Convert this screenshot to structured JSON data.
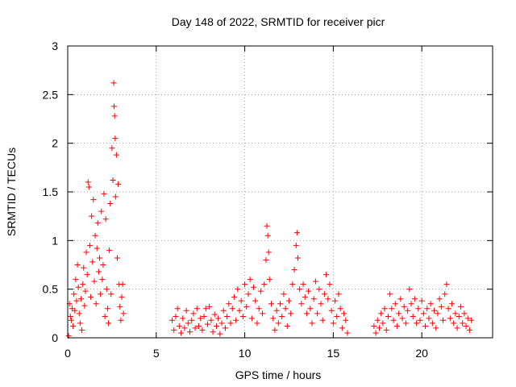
{
  "chart_data": {
    "type": "scatter",
    "title": "Day 148 of 2022, SRMTID for receiver picr",
    "xlabel": "GPS time / hours",
    "ylabel": "SRMTID / TECUs",
    "xlim": [
      0,
      24
    ],
    "ylim": [
      0,
      3
    ],
    "xticks": [
      0,
      5,
      10,
      15,
      20
    ],
    "xtick_labels": [
      "0",
      "5",
      "10",
      "15",
      "20"
    ],
    "yticks": [
      0,
      0.5,
      1,
      1.5,
      2,
      2.5,
      3
    ],
    "ytick_labels": [
      "0",
      "0.5",
      "1",
      "1.5",
      "2",
      "2.5",
      "3"
    ],
    "grid": true,
    "marker": "+",
    "color": "#ff0000",
    "series": [
      {
        "name": "picr",
        "points": [
          [
            0.05,
            0.02
          ],
          [
            0.1,
            0.35
          ],
          [
            0.15,
            0.22
          ],
          [
            0.2,
            0.18
          ],
          [
            0.25,
            0.3
          ],
          [
            0.3,
            0.12
          ],
          [
            0.35,
            0.45
          ],
          [
            0.4,
            0.28
          ],
          [
            0.45,
            0.6
          ],
          [
            0.5,
            0.38
          ],
          [
            0.55,
            0.75
          ],
          [
            0.6,
            0.52
          ],
          [
            0.65,
            0.25
          ],
          [
            0.7,
            0.15
          ],
          [
            0.75,
            0.4
          ],
          [
            0.8,
            0.08
          ],
          [
            0.85,
            0.55
          ],
          [
            0.9,
            0.72
          ],
          [
            0.95,
            0.33
          ],
          [
            1.0,
            0.48
          ],
          [
            1.05,
            0.88
          ],
          [
            1.1,
            0.65
          ],
          [
            1.15,
            1.6
          ],
          [
            1.2,
            1.55
          ],
          [
            1.25,
            0.95
          ],
          [
            1.3,
            0.42
          ],
          [
            1.35,
            1.25
          ],
          [
            1.4,
            0.78
          ],
          [
            1.45,
            1.42
          ],
          [
            1.5,
            0.58
          ],
          [
            1.55,
            1.05
          ],
          [
            1.6,
            0.35
          ],
          [
            1.65,
            0.92
          ],
          [
            1.7,
            1.18
          ],
          [
            1.75,
            0.68
          ],
          [
            1.8,
            0.82
          ],
          [
            1.85,
            0.45
          ],
          [
            1.9,
            1.3
          ],
          [
            1.95,
            0.6
          ],
          [
            2.0,
            0.75
          ],
          [
            2.05,
            1.48
          ],
          [
            2.1,
            0.22
          ],
          [
            2.15,
            1.22
          ],
          [
            2.2,
            0.5
          ],
          [
            2.25,
            0.3
          ],
          [
            2.3,
            0.15
          ],
          [
            2.35,
            0.9
          ],
          [
            2.4,
            1.38
          ],
          [
            2.45,
            0.45
          ],
          [
            2.5,
            1.95
          ],
          [
            2.55,
            1.62
          ],
          [
            2.6,
            2.62
          ],
          [
            2.62,
            2.38
          ],
          [
            2.65,
            2.28
          ],
          [
            2.68,
            2.05
          ],
          [
            2.7,
            1.45
          ],
          [
            2.75,
            1.88
          ],
          [
            2.8,
            0.82
          ],
          [
            2.85,
            1.58
          ],
          [
            2.9,
            0.55
          ],
          [
            2.95,
            0.32
          ],
          [
            3.0,
            0.18
          ],
          [
            3.05,
            0.42
          ],
          [
            3.1,
            0.55
          ],
          [
            3.15,
            0.25
          ],
          [
            5.9,
            0.18
          ],
          [
            6.0,
            0.08
          ],
          [
            6.1,
            0.22
          ],
          [
            6.2,
            0.3
          ],
          [
            6.3,
            0.12
          ],
          [
            6.4,
            0.05
          ],
          [
            6.5,
            0.2
          ],
          [
            6.6,
            0.1
          ],
          [
            6.7,
            0.28
          ],
          [
            6.8,
            0.15
          ],
          [
            6.9,
            0.06
          ],
          [
            7.0,
            0.18
          ],
          [
            7.1,
            0.25
          ],
          [
            7.2,
            0.1
          ],
          [
            7.3,
            0.3
          ],
          [
            7.4,
            0.12
          ],
          [
            7.5,
            0.2
          ],
          [
            7.6,
            0.08
          ],
          [
            7.7,
            0.22
          ],
          [
            7.8,
            0.3
          ],
          [
            7.9,
            0.14
          ],
          [
            8.0,
            0.32
          ],
          [
            8.1,
            0.18
          ],
          [
            8.2,
            0.06
          ],
          [
            8.3,
            0.24
          ],
          [
            8.4,
            0.12
          ],
          [
            8.5,
            0.2
          ],
          [
            8.6,
            0.04
          ],
          [
            8.7,
            0.15
          ],
          [
            8.8,
            0.28
          ],
          [
            8.9,
            0.1
          ],
          [
            9.0,
            0.22
          ],
          [
            9.1,
            0.35
          ],
          [
            9.2,
            0.15
          ],
          [
            9.3,
            0.3
          ],
          [
            9.4,
            0.42
          ],
          [
            9.5,
            0.18
          ],
          [
            9.6,
            0.5
          ],
          [
            9.7,
            0.28
          ],
          [
            9.8,
            0.38
          ],
          [
            9.9,
            0.22
          ],
          [
            10.0,
            0.55
          ],
          [
            10.1,
            0.32
          ],
          [
            10.2,
            0.45
          ],
          [
            10.3,
            0.6
          ],
          [
            10.4,
            0.2
          ],
          [
            10.5,
            0.52
          ],
          [
            10.6,
            0.38
          ],
          [
            10.7,
            0.15
          ],
          [
            10.8,
            0.3
          ],
          [
            10.9,
            0.48
          ],
          [
            11.0,
            0.25
          ],
          [
            11.1,
            0.55
          ],
          [
            11.2,
            0.8
          ],
          [
            11.25,
            1.15
          ],
          [
            11.3,
            1.05
          ],
          [
            11.35,
            0.88
          ],
          [
            11.4,
            0.6
          ],
          [
            11.5,
            0.35
          ],
          [
            11.6,
            0.2
          ],
          [
            11.7,
            0.08
          ],
          [
            11.8,
            0.28
          ],
          [
            11.9,
            0.15
          ],
          [
            12.0,
            0.35
          ],
          [
            12.1,
            0.22
          ],
          [
            12.2,
            0.45
          ],
          [
            12.3,
            0.3
          ],
          [
            12.4,
            0.12
          ],
          [
            12.5,
            0.38
          ],
          [
            12.6,
            0.25
          ],
          [
            12.7,
            0.55
          ],
          [
            12.8,
            0.7
          ],
          [
            12.9,
            0.95
          ],
          [
            12.95,
            1.08
          ],
          [
            13.0,
            0.82
          ],
          [
            13.1,
            0.5
          ],
          [
            13.2,
            0.35
          ],
          [
            13.3,
            0.55
          ],
          [
            13.4,
            0.42
          ],
          [
            13.5,
            0.25
          ],
          [
            13.6,
            0.48
          ],
          [
            13.7,
            0.3
          ],
          [
            13.8,
            0.15
          ],
          [
            13.9,
            0.4
          ],
          [
            14.0,
            0.58
          ],
          [
            14.1,
            0.25
          ],
          [
            14.2,
            0.5
          ],
          [
            14.3,
            0.35
          ],
          [
            14.4,
            0.18
          ],
          [
            14.5,
            0.45
          ],
          [
            14.6,
            0.65
          ],
          [
            14.7,
            0.4
          ],
          [
            14.8,
            0.55
          ],
          [
            14.9,
            0.28
          ],
          [
            15.0,
            0.15
          ],
          [
            15.1,
            0.38
          ],
          [
            15.2,
            0.22
          ],
          [
            15.3,
            0.45
          ],
          [
            15.4,
            0.3
          ],
          [
            15.5,
            0.1
          ],
          [
            15.6,
            0.25
          ],
          [
            15.7,
            0.18
          ],
          [
            15.8,
            0.05
          ],
          [
            17.3,
            0.12
          ],
          [
            17.4,
            0.05
          ],
          [
            17.5,
            0.18
          ],
          [
            17.6,
            0.1
          ],
          [
            17.7,
            0.25
          ],
          [
            17.8,
            0.15
          ],
          [
            17.9,
            0.3
          ],
          [
            18.0,
            0.08
          ],
          [
            18.1,
            0.22
          ],
          [
            18.2,
            0.45
          ],
          [
            18.3,
            0.3
          ],
          [
            18.4,
            0.18
          ],
          [
            18.5,
            0.35
          ],
          [
            18.6,
            0.12
          ],
          [
            18.7,
            0.25
          ],
          [
            18.8,
            0.4
          ],
          [
            18.9,
            0.2
          ],
          [
            19.0,
            0.32
          ],
          [
            19.1,
            0.15
          ],
          [
            19.2,
            0.28
          ],
          [
            19.3,
            0.5
          ],
          [
            19.4,
            0.35
          ],
          [
            19.5,
            0.22
          ],
          [
            19.6,
            0.4
          ],
          [
            19.7,
            0.15
          ],
          [
            19.8,
            0.3
          ],
          [
            19.9,
            0.18
          ],
          [
            20.0,
            0.38
          ],
          [
            20.1,
            0.25
          ],
          [
            20.2,
            0.12
          ],
          [
            20.3,
            0.3
          ],
          [
            20.4,
            0.2
          ],
          [
            20.5,
            0.35
          ],
          [
            20.6,
            0.15
          ],
          [
            20.7,
            0.28
          ],
          [
            20.8,
            0.1
          ],
          [
            20.9,
            0.25
          ],
          [
            21.0,
            0.4
          ],
          [
            21.1,
            0.32
          ],
          [
            21.2,
            0.18
          ],
          [
            21.3,
            0.45
          ],
          [
            21.4,
            0.55
          ],
          [
            21.5,
            0.3
          ],
          [
            21.6,
            0.2
          ],
          [
            21.7,
            0.35
          ],
          [
            21.8,
            0.15
          ],
          [
            21.9,
            0.25
          ],
          [
            22.0,
            0.1
          ],
          [
            22.1,
            0.22
          ],
          [
            22.2,
            0.32
          ],
          [
            22.3,
            0.15
          ],
          [
            22.4,
            0.25
          ],
          [
            22.5,
            0.12
          ],
          [
            22.6,
            0.2
          ],
          [
            22.7,
            0.08
          ],
          [
            22.8,
            0.18
          ]
        ]
      }
    ]
  }
}
